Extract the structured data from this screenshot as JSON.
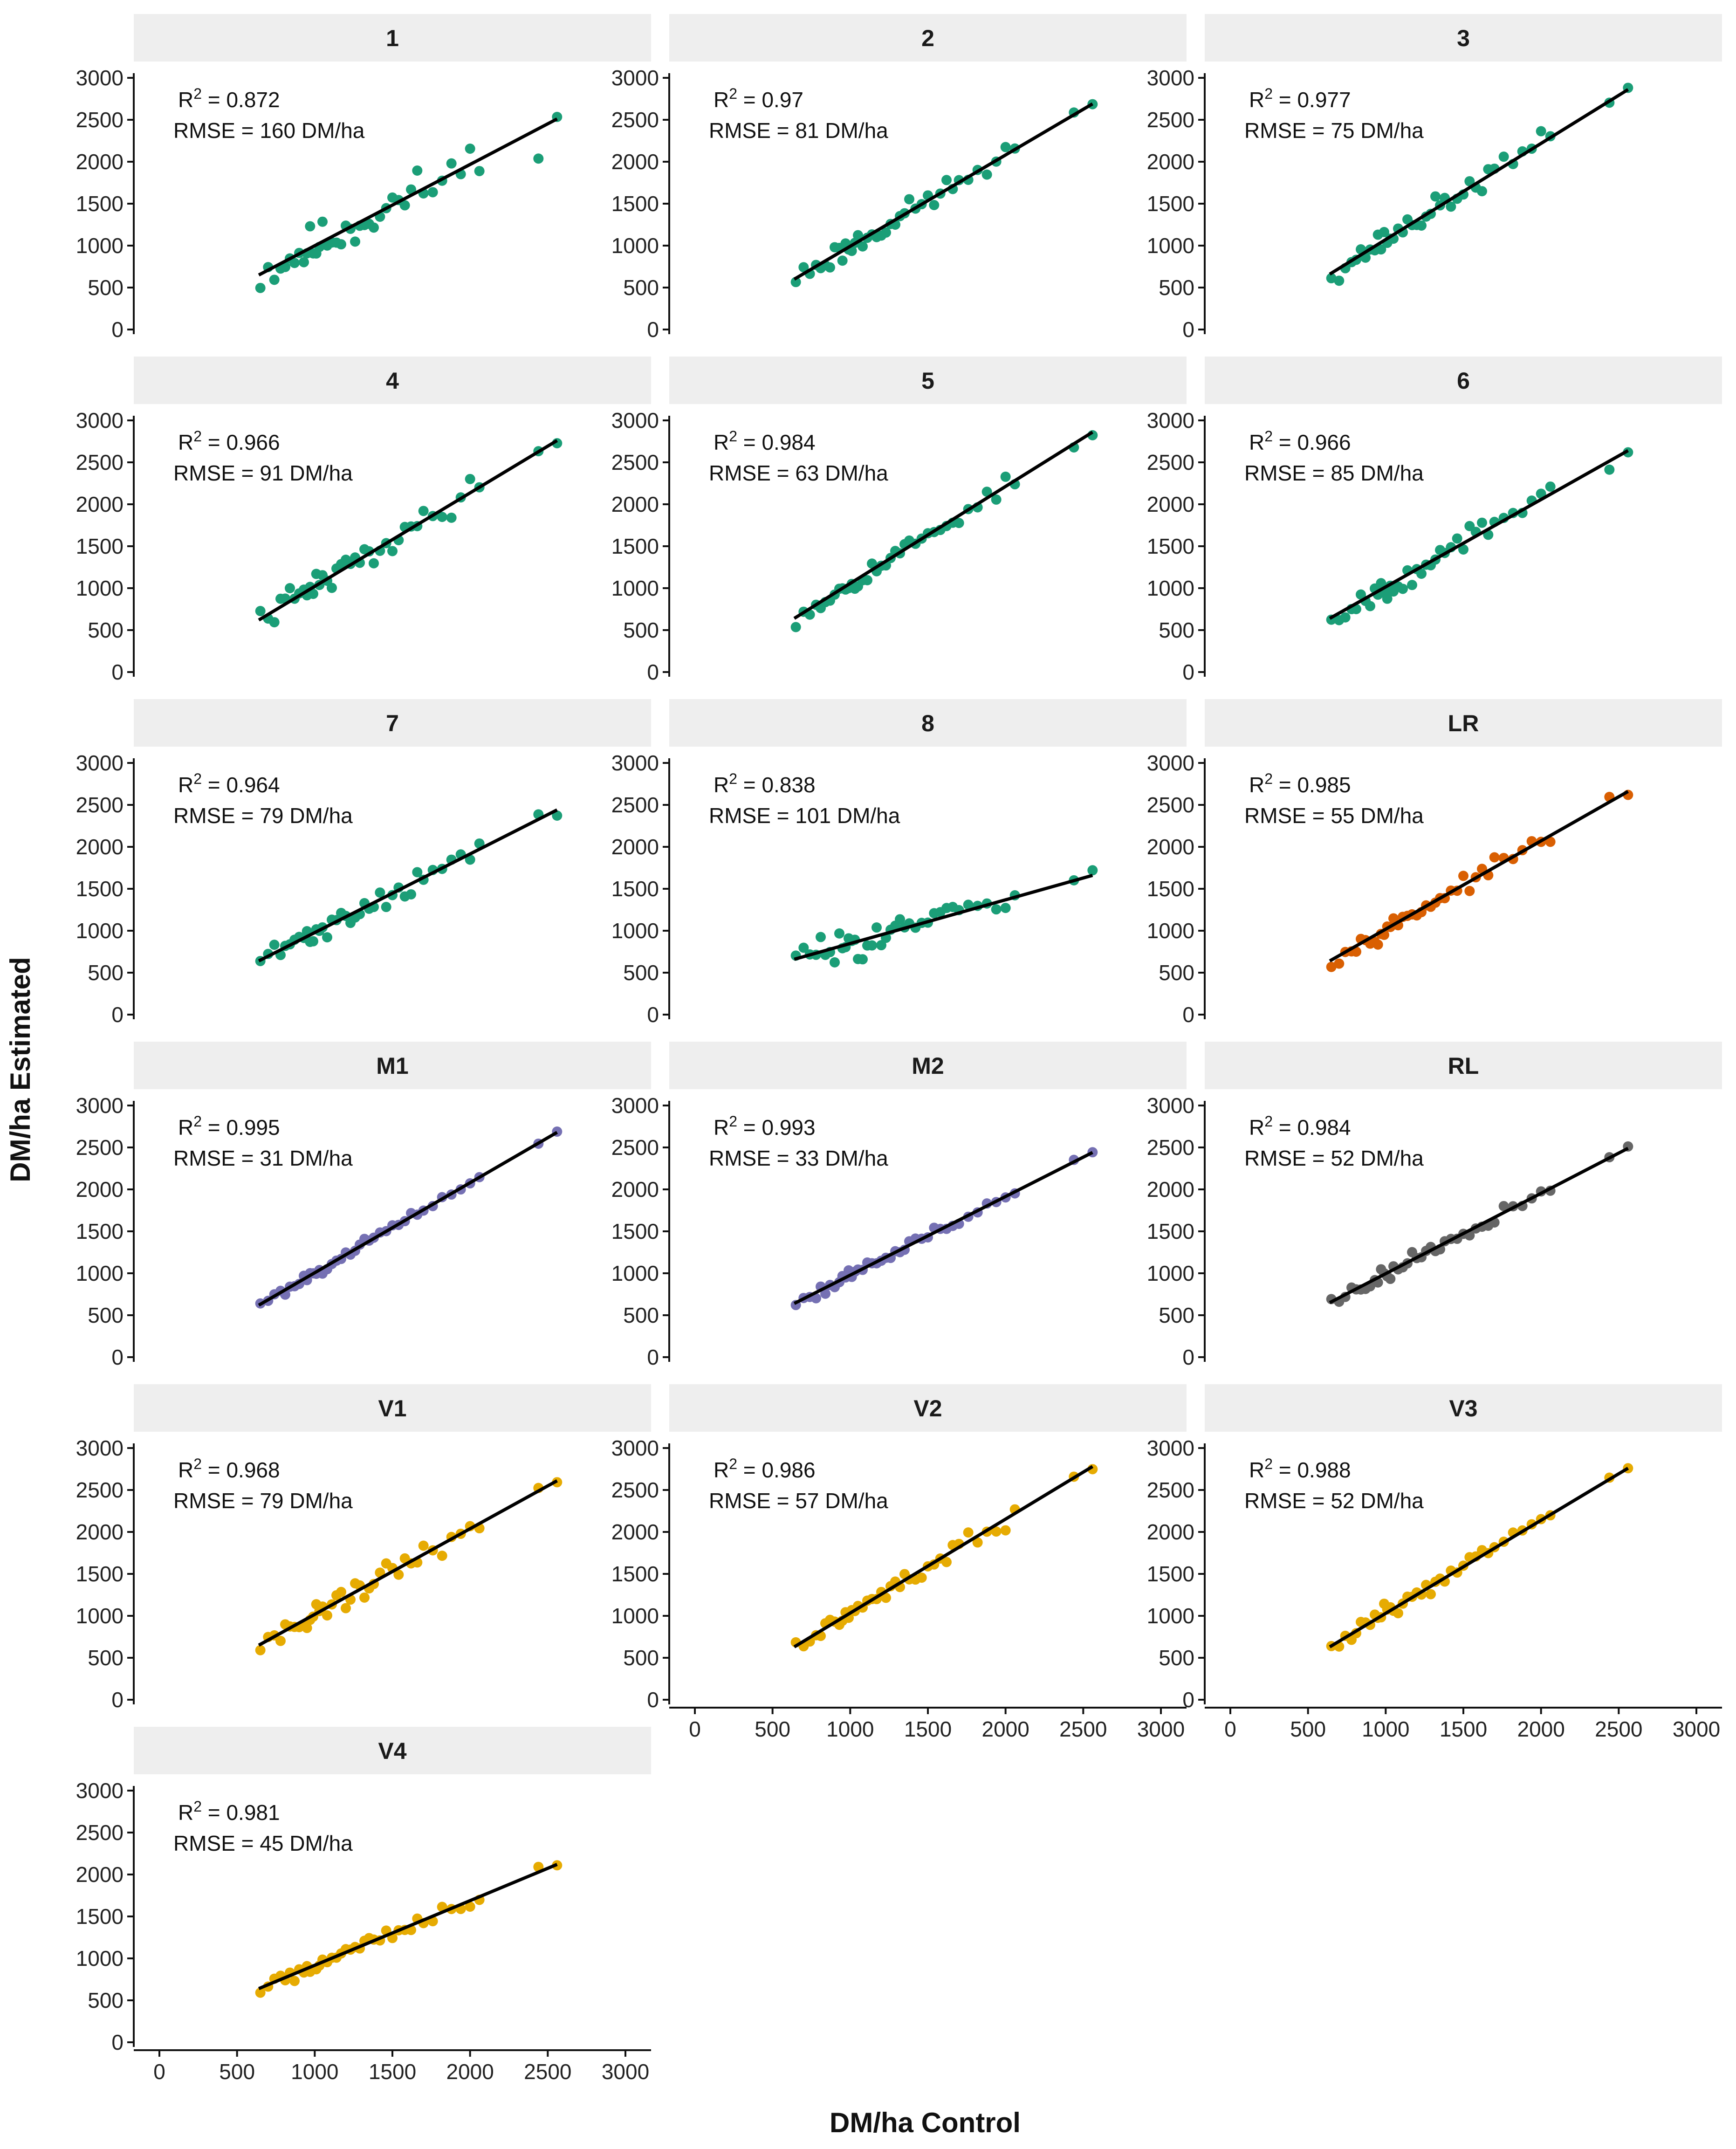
{
  "chart_data": {
    "type": "scatter",
    "xlabel": "DM/ha Control",
    "ylabel": "DM/ha Estimated",
    "xlim": [
      0,
      3000
    ],
    "ylim": [
      0,
      3000
    ],
    "x_ticks": [
      0,
      500,
      1000,
      1500,
      2000,
      2500,
      3000
    ],
    "y_ticks": [
      0,
      500,
      1000,
      1500,
      2000,
      2500,
      3000
    ],
    "grid": false,
    "x_values": [
      650,
      700,
      740,
      780,
      810,
      840,
      870,
      900,
      930,
      950,
      970,
      990,
      1010,
      1030,
      1050,
      1080,
      1110,
      1140,
      1170,
      1200,
      1230,
      1260,
      1290,
      1320,
      1350,
      1380,
      1420,
      1460,
      1500,
      1540,
      1580,
      1620,
      1660,
      1700,
      1760,
      1820,
      1880,
      1940,
      2000,
      2060,
      2440,
      2560
    ],
    "colors": {
      "green": "#1b9e77",
      "orange": "#d95f02",
      "purple": "#7570b3",
      "gray": "#666666",
      "yellow": "#e6ab02",
      "fit_line": "#000000",
      "strip_bg": "#eeeeee"
    },
    "panels": [
      {
        "label": "1",
        "r2_value": "0.872",
        "rmse_text": "RMSE = 160 DM/ha",
        "color": "#1b9e77",
        "fit_start": [
          640,
          650
        ],
        "fit_end": [
          2560,
          2510
        ],
        "noise": 130,
        "seed": 11
      },
      {
        "label": "2",
        "r2_value": "0.97",
        "rmse_text": "RMSE = 81 DM/ha",
        "color": "#1b9e77",
        "fit_start": [
          640,
          600
        ],
        "fit_end": [
          2560,
          2690
        ],
        "noise": 70,
        "seed": 23
      },
      {
        "label": "3",
        "r2_value": "0.977",
        "rmse_text": "RMSE = 75 DM/ha",
        "color": "#1b9e77",
        "fit_start": [
          640,
          660
        ],
        "fit_end": [
          2560,
          2860
        ],
        "noise": 65,
        "seed": 37
      },
      {
        "label": "4",
        "r2_value": "0.966",
        "rmse_text": "RMSE = 91 DM/ha",
        "color": "#1b9e77",
        "fit_start": [
          640,
          620
        ],
        "fit_end": [
          2560,
          2760
        ],
        "noise": 75,
        "seed": 41
      },
      {
        "label": "5",
        "r2_value": "0.984",
        "rmse_text": "RMSE = 63 DM/ha",
        "color": "#1b9e77",
        "fit_start": [
          640,
          640
        ],
        "fit_end": [
          2560,
          2860
        ],
        "noise": 55,
        "seed": 53
      },
      {
        "label": "6",
        "r2_value": "0.966",
        "rmse_text": "RMSE = 85 DM/ha",
        "color": "#1b9e77",
        "fit_start": [
          640,
          640
        ],
        "fit_end": [
          2560,
          2640
        ],
        "noise": 70,
        "seed": 67
      },
      {
        "label": "7",
        "r2_value": "0.964",
        "rmse_text": "RMSE = 79 DM/ha",
        "color": "#1b9e77",
        "fit_start": [
          640,
          640
        ],
        "fit_end": [
          2560,
          2440
        ],
        "noise": 65,
        "seed": 71
      },
      {
        "label": "8",
        "r2_value": "0.838",
        "rmse_text": "RMSE = 101 DM/ha",
        "color": "#1b9e77",
        "fit_start": [
          640,
          660
        ],
        "fit_end": [
          2560,
          1660
        ],
        "noise": 85,
        "seed": 83
      },
      {
        "label": "LR",
        "r2_value": "0.985",
        "rmse_text": "RMSE = 55 DM/ha",
        "color": "#d95f02",
        "fit_start": [
          640,
          640
        ],
        "fit_end": [
          2560,
          2660
        ],
        "noise": 45,
        "seed": 97
      },
      {
        "label": "M1",
        "r2_value": "0.995",
        "rmse_text": "RMSE = 31 DM/ha",
        "color": "#7570b3",
        "fit_start": [
          640,
          620
        ],
        "fit_end": [
          2560,
          2680
        ],
        "noise": 25,
        "seed": 101
      },
      {
        "label": "M2",
        "r2_value": "0.993",
        "rmse_text": "RMSE = 33 DM/ha",
        "color": "#7570b3",
        "fit_start": [
          640,
          640
        ],
        "fit_end": [
          2560,
          2440
        ],
        "noise": 28,
        "seed": 113
      },
      {
        "label": "RL",
        "r2_value": "0.984",
        "rmse_text": "RMSE = 52 DM/ha",
        "color": "#666666",
        "fit_start": [
          640,
          650
        ],
        "fit_end": [
          2560,
          2490
        ],
        "noise": 45,
        "seed": 127
      },
      {
        "label": "V1",
        "r2_value": "0.968",
        "rmse_text": "RMSE = 79 DM/ha",
        "color": "#e6ab02",
        "fit_start": [
          640,
          650
        ],
        "fit_end": [
          2560,
          2610
        ],
        "noise": 65,
        "seed": 131
      },
      {
        "label": "V2",
        "r2_value": "0.986",
        "rmse_text": "RMSE = 57 DM/ha",
        "color": "#e6ab02",
        "fit_start": [
          640,
          630
        ],
        "fit_end": [
          2560,
          2780
        ],
        "noise": 50,
        "seed": 149
      },
      {
        "label": "V3",
        "r2_value": "0.988",
        "rmse_text": "RMSE = 52 DM/ha",
        "color": "#e6ab02",
        "fit_start": [
          640,
          630
        ],
        "fit_end": [
          2560,
          2760
        ],
        "noise": 45,
        "seed": 151
      },
      {
        "label": "V4",
        "r2_value": "0.981",
        "rmse_text": "RMSE = 45 DM/ha",
        "color": "#e6ab02",
        "fit_start": [
          640,
          640
        ],
        "fit_end": [
          2560,
          2120
        ],
        "noise": 40,
        "seed": 163
      }
    ],
    "r2_label": "R",
    "r2_exponent": "2",
    "r2_eq": " = "
  }
}
